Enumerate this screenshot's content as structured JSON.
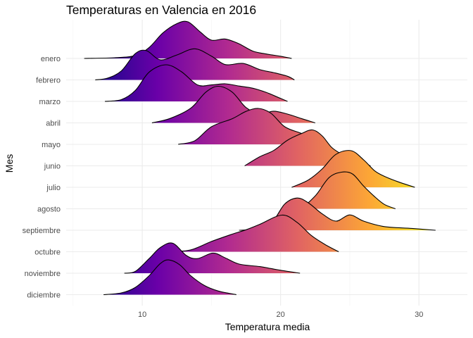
{
  "chart_data": {
    "type": "ridgeline",
    "title": "Temperaturas en Valencia en 2016",
    "xlabel": "Temperatura media",
    "ylabel": "Mes",
    "xlim": [
      4.5,
      33.5
    ],
    "xticks": [
      10,
      20,
      30
    ],
    "grid": true,
    "fill": "gradient by temperature (plasma palette)",
    "gradient_colors": [
      "#0d0887",
      "#6a00a8",
      "#b12a90",
      "#e16462",
      "#fca636",
      "#f0f921"
    ],
    "categories": [
      "enero",
      "febrero",
      "marzo",
      "abril",
      "mayo",
      "junio",
      "julio",
      "agosto",
      "septiembre",
      "octubre",
      "noviembre",
      "diciembre"
    ],
    "series": [
      {
        "category": "enero",
        "range": [
          5.8,
          20.8
        ],
        "curve": [
          [
            5.8,
            0
          ],
          [
            8,
            0.02
          ],
          [
            9.5,
            0.08
          ],
          [
            10.5,
            0.3
          ],
          [
            11.5,
            0.7
          ],
          [
            12.5,
            0.95
          ],
          [
            13.3,
            1.0
          ],
          [
            14.2,
            0.72
          ],
          [
            15,
            0.5
          ],
          [
            16,
            0.53
          ],
          [
            17,
            0.4
          ],
          [
            18,
            0.2
          ],
          [
            19,
            0.12
          ],
          [
            20,
            0.06
          ],
          [
            20.8,
            0
          ]
        ]
      },
      {
        "category": "febrero",
        "range": [
          6.6,
          21.0
        ],
        "curve": [
          [
            6.6,
            0
          ],
          [
            7.5,
            0.05
          ],
          [
            8.5,
            0.25
          ],
          [
            9.5,
            0.72
          ],
          [
            10.3,
            0.8
          ],
          [
            11.3,
            0.55
          ],
          [
            12.5,
            0.68
          ],
          [
            13.8,
            0.85
          ],
          [
            15,
            0.65
          ],
          [
            16,
            0.42
          ],
          [
            17.3,
            0.45
          ],
          [
            18.5,
            0.28
          ],
          [
            19.5,
            0.2
          ],
          [
            20.5,
            0.1
          ],
          [
            21,
            0
          ]
        ]
      },
      {
        "category": "marzo",
        "range": [
          7.3,
          20.5
        ],
        "curve": [
          [
            7.3,
            0
          ],
          [
            8.5,
            0.05
          ],
          [
            9.5,
            0.3
          ],
          [
            10.5,
            0.8
          ],
          [
            11.7,
            1.0
          ],
          [
            12.8,
            0.82
          ],
          [
            14,
            0.45
          ],
          [
            15,
            0.45
          ],
          [
            16,
            0.48
          ],
          [
            17,
            0.42
          ],
          [
            18,
            0.36
          ],
          [
            19,
            0.24
          ],
          [
            20,
            0.08
          ],
          [
            20.5,
            0
          ]
        ]
      },
      {
        "category": "abril",
        "range": [
          10.7,
          22.5
        ],
        "curve": [
          [
            10.7,
            0
          ],
          [
            12,
            0.12
          ],
          [
            13.5,
            0.4
          ],
          [
            14.6,
            0.84
          ],
          [
            15.5,
            1.0
          ],
          [
            16.5,
            0.84
          ],
          [
            17.5,
            0.42
          ],
          [
            18.5,
            0.25
          ],
          [
            19.5,
            0.32
          ],
          [
            20.5,
            0.24
          ],
          [
            21.5,
            0.12
          ],
          [
            22.5,
            0
          ]
        ]
      },
      {
        "category": "mayo",
        "range": [
          12.6,
          23.5
        ],
        "curve": [
          [
            12.6,
            0
          ],
          [
            13.8,
            0.1
          ],
          [
            15,
            0.48
          ],
          [
            16.5,
            0.7
          ],
          [
            17.5,
            0.9
          ],
          [
            18.4,
            0.98
          ],
          [
            19.3,
            0.85
          ],
          [
            20.3,
            0.48
          ],
          [
            21.5,
            0.3
          ],
          [
            22.5,
            0.15
          ],
          [
            23.5,
            0
          ]
        ]
      },
      {
        "category": "junio",
        "range": [
          17.4,
          26.5
        ],
        "curve": [
          [
            17.4,
            0
          ],
          [
            18.5,
            0.25
          ],
          [
            19.5,
            0.42
          ],
          [
            20.5,
            0.7
          ],
          [
            21.5,
            0.88
          ],
          [
            22.3,
            0.98
          ],
          [
            23,
            0.82
          ],
          [
            23.7,
            0.5
          ],
          [
            24.5,
            0.3
          ],
          [
            25.5,
            0.12
          ],
          [
            26.5,
            0
          ]
        ]
      },
      {
        "category": "julio",
        "range": [
          20.8,
          29.7
        ],
        "curve": [
          [
            20.8,
            0
          ],
          [
            22,
            0.2
          ],
          [
            23,
            0.5
          ],
          [
            24,
            0.9
          ],
          [
            25.1,
            1.0
          ],
          [
            26,
            0.75
          ],
          [
            26.8,
            0.45
          ],
          [
            27.5,
            0.3
          ],
          [
            28.5,
            0.15
          ],
          [
            29.7,
            0
          ]
        ]
      },
      {
        "category": "agosto",
        "range": [
          20.2,
          28.3
        ],
        "curve": [
          [
            20.2,
            0
          ],
          [
            21.5,
            0.05
          ],
          [
            22.5,
            0.35
          ],
          [
            23.5,
            0.85
          ],
          [
            24.4,
            1.0
          ],
          [
            25.2,
            0.95
          ],
          [
            26,
            0.62
          ],
          [
            26.8,
            0.33
          ],
          [
            27.5,
            0.12
          ],
          [
            28.3,
            0
          ]
        ]
      },
      {
        "category": "septiembre",
        "range": [
          17.0,
          31.2
        ],
        "curve": [
          [
            17,
            0
          ],
          [
            18.5,
            0.05
          ],
          [
            19.5,
            0.28
          ],
          [
            20.3,
            0.72
          ],
          [
            21.2,
            0.88
          ],
          [
            22,
            0.75
          ],
          [
            23,
            0.45
          ],
          [
            24,
            0.25
          ],
          [
            25,
            0.42
          ],
          [
            26,
            0.25
          ],
          [
            27.5,
            0.1
          ],
          [
            29.5,
            0.05
          ],
          [
            31.2,
            0
          ]
        ]
      },
      {
        "category": "octubre",
        "range": [
          12.0,
          24.2
        ],
        "curve": [
          [
            12,
            0
          ],
          [
            13.5,
            0.05
          ],
          [
            15,
            0.28
          ],
          [
            16.5,
            0.48
          ],
          [
            17.5,
            0.6
          ],
          [
            18.5,
            0.75
          ],
          [
            20.1,
            1.0
          ],
          [
            21.2,
            0.8
          ],
          [
            22.2,
            0.45
          ],
          [
            23.2,
            0.2
          ],
          [
            24.2,
            0
          ]
        ]
      },
      {
        "category": "noviembre",
        "range": [
          8.7,
          21.4
        ],
        "curve": [
          [
            8.7,
            0
          ],
          [
            9.5,
            0.05
          ],
          [
            10.5,
            0.4
          ],
          [
            11.3,
            0.7
          ],
          [
            12.2,
            0.82
          ],
          [
            13.2,
            0.48
          ],
          [
            14,
            0.4
          ],
          [
            15.1,
            0.55
          ],
          [
            16,
            0.42
          ],
          [
            17,
            0.25
          ],
          [
            18.5,
            0.18
          ],
          [
            20,
            0.08
          ],
          [
            21.4,
            0
          ]
        ]
      },
      {
        "category": "diciembre",
        "range": [
          7.2,
          16.8
        ],
        "curve": [
          [
            7.2,
            0
          ],
          [
            8.5,
            0.05
          ],
          [
            9.5,
            0.2
          ],
          [
            10.5,
            0.52
          ],
          [
            11.3,
            0.85
          ],
          [
            11.9,
            0.95
          ],
          [
            12.7,
            0.82
          ],
          [
            13.5,
            0.52
          ],
          [
            14.5,
            0.25
          ],
          [
            15.5,
            0.1
          ],
          [
            16.8,
            0
          ]
        ]
      }
    ]
  }
}
